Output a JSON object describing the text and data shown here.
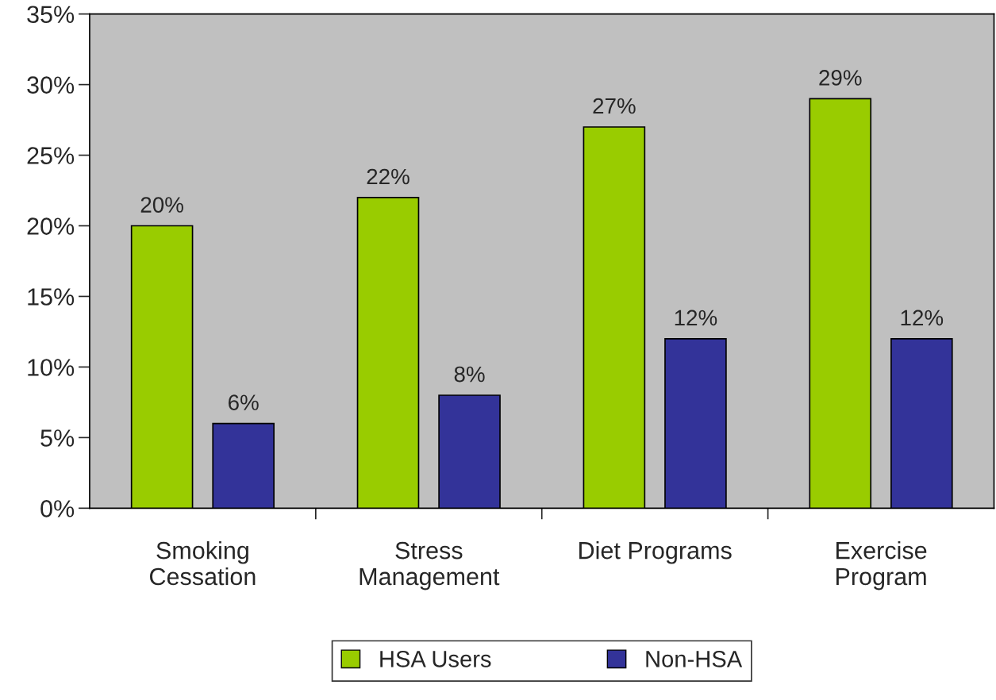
{
  "chart_data": {
    "type": "bar",
    "categories": [
      "Smoking\nCessation",
      "Stress\nManagement",
      "Diet Programs",
      "Exercise\nProgram"
    ],
    "series": [
      {
        "name": "HSA Users",
        "color": "#99cc00",
        "values": [
          20,
          22,
          27,
          29
        ],
        "value_labels": [
          "20%",
          "22%",
          "27%",
          "29%"
        ]
      },
      {
        "name": "Non-HSA",
        "color": "#333399",
        "values": [
          6,
          8,
          12,
          12
        ],
        "value_labels": [
          "6%",
          "8%",
          "12%",
          "12%"
        ]
      }
    ],
    "ylim": [
      0,
      35
    ],
    "yticks": [
      {
        "value": 0,
        "label": "0%"
      },
      {
        "value": 5,
        "label": "5%"
      },
      {
        "value": 10,
        "label": "10%"
      },
      {
        "value": 15,
        "label": "15%"
      },
      {
        "value": 20,
        "label": "20%"
      },
      {
        "value": 25,
        "label": "25%"
      },
      {
        "value": 30,
        "label": "30%"
      },
      {
        "value": 35,
        "label": "35%"
      }
    ],
    "grid": false,
    "legend": "bottom"
  }
}
